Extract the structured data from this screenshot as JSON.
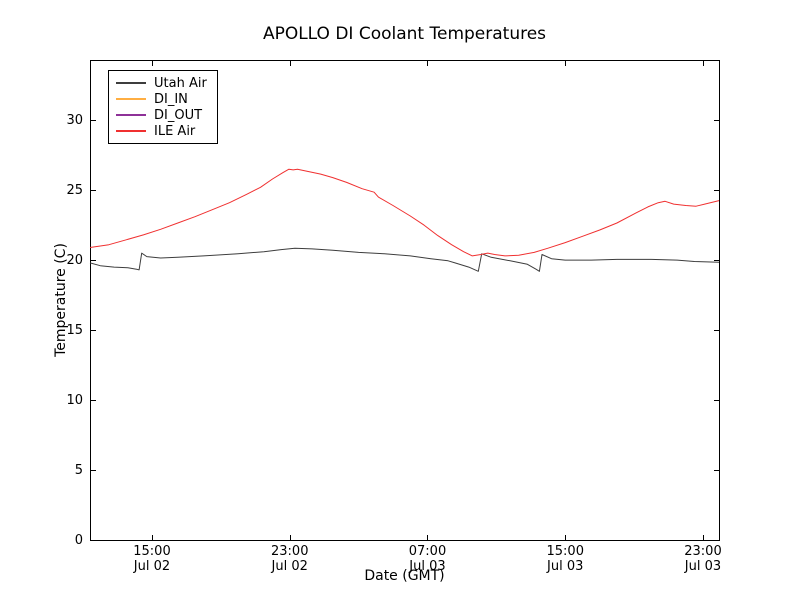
{
  "chart_data": {
    "type": "line",
    "title": "APOLLO DI Coolant Temperatures",
    "xlabel": "Date (GMT)",
    "ylabel": "Temperature (C)",
    "grid": false,
    "legend_position": "upper-left",
    "x_axis": {
      "min": 11.4,
      "max": 47.93,
      "unit": "hours since Jul 02 00:00 GMT"
    },
    "y_axis": {
      "min": 0,
      "max": 34.3,
      "ticks": [
        0,
        5,
        10,
        15,
        20,
        25,
        30
      ]
    },
    "x_ticks": [
      {
        "value": 15,
        "time": "15:00",
        "date": "Jul 02"
      },
      {
        "value": 23,
        "time": "23:00",
        "date": "Jul 02"
      },
      {
        "value": 31,
        "time": "07:00",
        "date": "Jul 03"
      },
      {
        "value": 39,
        "time": "15:00",
        "date": "Jul 03"
      },
      {
        "value": 47,
        "time": "23:00",
        "date": "Jul 03"
      }
    ],
    "series": [
      {
        "name": "Utah Air",
        "color": "#3d3d3d",
        "points": [
          [
            11.4,
            19.8
          ],
          [
            12.0,
            19.6
          ],
          [
            12.8,
            19.5
          ],
          [
            13.6,
            19.45
          ],
          [
            14.1,
            19.35
          ],
          [
            14.25,
            19.3
          ],
          [
            14.4,
            20.5
          ],
          [
            14.7,
            20.25
          ],
          [
            15.5,
            20.15
          ],
          [
            16.5,
            20.2
          ],
          [
            18.0,
            20.3
          ],
          [
            20.0,
            20.45
          ],
          [
            21.5,
            20.6
          ],
          [
            22.5,
            20.75
          ],
          [
            23.3,
            20.85
          ],
          [
            24.3,
            20.8
          ],
          [
            25.5,
            20.7
          ],
          [
            27.0,
            20.55
          ],
          [
            28.5,
            20.45
          ],
          [
            30.0,
            20.3
          ],
          [
            31.2,
            20.1
          ],
          [
            32.2,
            19.95
          ],
          [
            32.6,
            19.8
          ],
          [
            33.4,
            19.5
          ],
          [
            33.95,
            19.2
          ],
          [
            34.15,
            20.45
          ],
          [
            34.7,
            20.2
          ],
          [
            35.8,
            19.95
          ],
          [
            36.8,
            19.7
          ],
          [
            37.3,
            19.35
          ],
          [
            37.5,
            19.2
          ],
          [
            37.65,
            20.4
          ],
          [
            38.2,
            20.1
          ],
          [
            39.0,
            20.0
          ],
          [
            40.5,
            20.0
          ],
          [
            42.0,
            20.05
          ],
          [
            44.0,
            20.05
          ],
          [
            45.5,
            20.0
          ],
          [
            46.5,
            19.9
          ],
          [
            47.93,
            19.85
          ]
        ]
      },
      {
        "name": "DI_IN",
        "color": "#ffae42",
        "points": []
      },
      {
        "name": "DI_OUT",
        "color": "#8e3198",
        "points": []
      },
      {
        "name": "ILE Air",
        "color": "#f03030",
        "points": [
          [
            11.4,
            20.9
          ],
          [
            12.5,
            21.1
          ],
          [
            13.5,
            21.45
          ],
          [
            14.5,
            21.8
          ],
          [
            15.5,
            22.2
          ],
          [
            16.5,
            22.65
          ],
          [
            17.5,
            23.1
          ],
          [
            18.5,
            23.6
          ],
          [
            19.5,
            24.1
          ],
          [
            20.5,
            24.7
          ],
          [
            21.3,
            25.2
          ],
          [
            22.0,
            25.8
          ],
          [
            22.6,
            26.25
          ],
          [
            22.95,
            26.5
          ],
          [
            23.2,
            26.45
          ],
          [
            23.45,
            26.5
          ],
          [
            24.0,
            26.35
          ],
          [
            24.8,
            26.15
          ],
          [
            25.5,
            25.9
          ],
          [
            26.3,
            25.55
          ],
          [
            27.2,
            25.1
          ],
          [
            27.9,
            24.85
          ],
          [
            28.15,
            24.5
          ],
          [
            29.0,
            23.9
          ],
          [
            30.0,
            23.15
          ],
          [
            30.8,
            22.5
          ],
          [
            31.6,
            21.75
          ],
          [
            32.4,
            21.1
          ],
          [
            33.1,
            20.6
          ],
          [
            33.6,
            20.3
          ],
          [
            34.1,
            20.4
          ],
          [
            34.5,
            20.5
          ],
          [
            34.9,
            20.4
          ],
          [
            35.5,
            20.3
          ],
          [
            36.3,
            20.35
          ],
          [
            37.2,
            20.55
          ],
          [
            38.0,
            20.85
          ],
          [
            39.0,
            21.25
          ],
          [
            40.0,
            21.7
          ],
          [
            41.0,
            22.15
          ],
          [
            42.0,
            22.65
          ],
          [
            43.0,
            23.3
          ],
          [
            43.8,
            23.8
          ],
          [
            44.4,
            24.1
          ],
          [
            44.8,
            24.2
          ],
          [
            45.3,
            24.0
          ],
          [
            46.0,
            23.9
          ],
          [
            46.6,
            23.85
          ],
          [
            47.1,
            24.0
          ],
          [
            47.93,
            24.25
          ]
        ]
      }
    ]
  }
}
